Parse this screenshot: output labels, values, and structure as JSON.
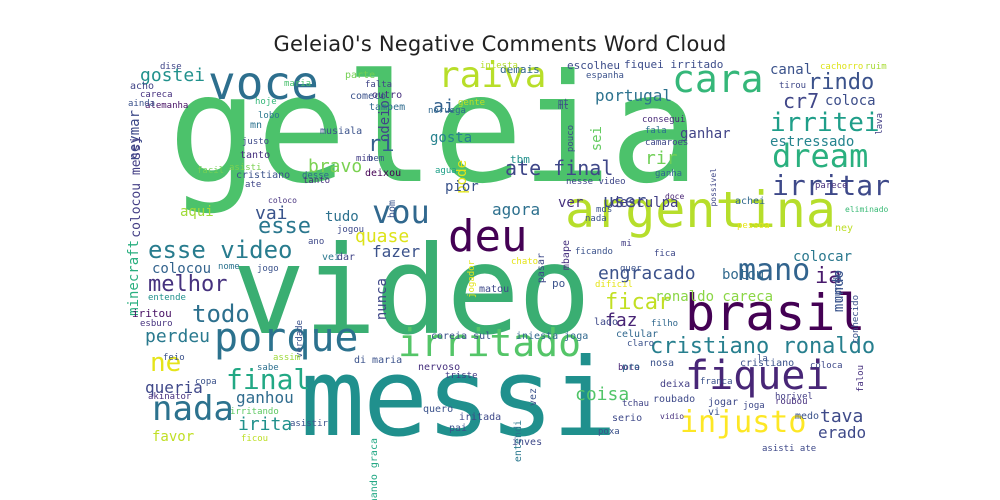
{
  "title": "Geleia0's Negative Comments Word Cloud",
  "words": [
    {
      "text": "geleia",
      "color": "#4cc26b"
    },
    {
      "text": "video",
      "color": "#3aae72"
    },
    {
      "text": "messi",
      "color": "#20908d"
    },
    {
      "text": "argentina",
      "color": "#b6de2b"
    },
    {
      "text": "brasil",
      "color": "#440154"
    },
    {
      "text": "voce",
      "color": "#2d6f8e"
    },
    {
      "text": "raiva",
      "color": "#b8de29"
    },
    {
      "text": "cara",
      "color": "#35b779"
    },
    {
      "text": "dream",
      "color": "#2ab07f"
    },
    {
      "text": "porque",
      "color": "#2c728e"
    },
    {
      "text": "irritado",
      "color": "#54c568"
    },
    {
      "text": "fiquei",
      "color": "#482677"
    },
    {
      "text": "deu",
      "color": "#440154"
    },
    {
      "text": "vou",
      "color": "#31688e"
    },
    {
      "text": "mano",
      "color": "#32648e"
    },
    {
      "text": "nada",
      "color": "#2c728e"
    },
    {
      "text": "irritei",
      "color": "#1f9e89"
    },
    {
      "text": "irritar",
      "color": "#3e4989"
    },
    {
      "text": "rindo",
      "color": "#3b528b"
    },
    {
      "text": "injusto",
      "color": "#fde725"
    },
    {
      "text": "final",
      "color": "#22a884"
    },
    {
      "text": "esse video",
      "color": "#287c8e"
    },
    {
      "text": "todo",
      "color": "#2d708e"
    },
    {
      "text": "cristiano ronaldo",
      "color": "#277f8e"
    },
    {
      "text": "cr7",
      "color": "#404688"
    },
    {
      "text": "melhor",
      "color": "#46327e"
    },
    {
      "text": "ficar",
      "color": "#c2df23"
    },
    {
      "text": "engracado",
      "color": "#3b528b"
    },
    {
      "text": "ne",
      "color": "#e5e419"
    },
    {
      "text": "esse",
      "color": "#2a778e"
    },
    {
      "text": "ate final",
      "color": "#3f4788"
    },
    {
      "text": "gostei",
      "color": "#21918c"
    },
    {
      "text": "ia",
      "color": "#481a6c"
    },
    {
      "text": "odeio",
      "color": "#414487"
    },
    {
      "text": "portugal",
      "color": "#2c728e"
    },
    {
      "text": "bravo",
      "color": "#7ad151"
    },
    {
      "text": "ri",
      "color": "#355f8d"
    },
    {
      "text": "agora",
      "color": "#2d708e"
    },
    {
      "text": "quase",
      "color": "#dde318"
    },
    {
      "text": "colocou",
      "color": "#33638d"
    },
    {
      "text": "fazer",
      "color": "#3b528b"
    },
    {
      "text": "neymar",
      "color": "#3e4a89"
    },
    {
      "text": "tava",
      "color": "#3e4a89"
    },
    {
      "text": "coisa",
      "color": "#52c569"
    },
    {
      "text": "irita",
      "color": "#21918c"
    },
    {
      "text": "ganhou",
      "color": "#2f6c8e"
    },
    {
      "text": "erado",
      "color": "#3e4989"
    },
    {
      "text": "favor",
      "color": "#c0df25"
    },
    {
      "text": "queria",
      "color": "#3f4889"
    },
    {
      "text": "perdeu",
      "color": "#29798e"
    },
    {
      "text": "ronaldo careca",
      "color": "#8bd646"
    },
    {
      "text": "botou",
      "color": "#30698e"
    },
    {
      "text": "colocar",
      "color": "#2a788e"
    },
    {
      "text": "mundo",
      "color": "#3a548c"
    },
    {
      "text": "faz",
      "color": "#482475"
    },
    {
      "text": "rir",
      "color": "#70cf57"
    },
    {
      "text": "ai",
      "color": "#34618d"
    },
    {
      "text": "ganhar",
      "color": "#414487"
    },
    {
      "text": "pode",
      "color": "#e2e418"
    },
    {
      "text": "sei",
      "color": "#63cb5f"
    },
    {
      "text": "user",
      "color": "#3e4c8a"
    },
    {
      "text": "vai",
      "color": "#3a548c"
    },
    {
      "text": "tudo",
      "color": "#2d718e"
    },
    {
      "text": "aqui",
      "color": "#a0da39"
    },
    {
      "text": "canal",
      "color": "#3b528b"
    },
    {
      "text": "coloca",
      "color": "#3d4e8a"
    },
    {
      "text": "estressado",
      "color": "#25848e"
    },
    {
      "text": "gosta",
      "color": "#26828e"
    },
    {
      "text": "pior",
      "color": "#3a538b"
    },
    {
      "text": "ver",
      "color": "#46307e"
    },
    {
      "text": "desculpa",
      "color": "#424086"
    },
    {
      "text": "nunca",
      "color": "#3f4788"
    },
    {
      "text": "minecraft",
      "color": "#29af7f"
    },
    {
      "text": "colocou messi",
      "color": "#433e85"
    },
    {
      "text": "fiquei irritado",
      "color": "#3d4d8a"
    },
    {
      "text": "escolheu",
      "color": "#3d4d8a"
    },
    {
      "text": "demais",
      "color": "#31678e"
    },
    {
      "text": "tbm",
      "color": "#21918c"
    },
    {
      "text": "mundo",
      "color": "#3a548c"
    },
    {
      "text": "iritou",
      "color": "#471063"
    },
    {
      "text": "bom",
      "color": "#3a548c"
    },
    {
      "text": "outro",
      "color": "#46307e"
    },
    {
      "text": "tambem",
      "color": "#2f6b8e"
    },
    {
      "text": "parte",
      "color": "#75d054"
    },
    {
      "text": "comeco",
      "color": "#3b528b"
    },
    {
      "text": "dise",
      "color": "#404688"
    },
    {
      "text": "acho",
      "color": "#414487"
    },
    {
      "text": "careca",
      "color": "#46307e"
    },
    {
      "text": "alemanha",
      "color": "#471164"
    },
    {
      "text": "hoje",
      "color": "#35b779"
    },
    {
      "text": "lobo",
      "color": "#2a788e"
    },
    {
      "text": "mn",
      "color": "#2c728e"
    },
    {
      "text": "musiala",
      "color": "#3b528b"
    },
    {
      "text": "justo",
      "color": "#3e4a89"
    },
    {
      "text": "tanto",
      "color": "#46307e"
    },
    {
      "text": "facil",
      "color": "#73d056"
    },
    {
      "text": "asisti",
      "color": "#7ad151"
    },
    {
      "text": "ate",
      "color": "#404688"
    },
    {
      "text": "bem",
      "color": "#3b528b"
    },
    {
      "text": "mim",
      "color": "#433e85"
    },
    {
      "text": "deixou",
      "color": "#440154"
    },
    {
      "text": "desse",
      "color": "#30698e"
    },
    {
      "text": "agua",
      "color": "#1fa088"
    },
    {
      "text": "nesse video",
      "color": "#3f4788"
    },
    {
      "text": "camaroes",
      "color": "#3f4788"
    },
    {
      "text": "consegui",
      "color": "#482878"
    },
    {
      "text": "fala",
      "color": "#2c728e"
    },
    {
      "text": "ganha",
      "color": "#31688e"
    },
    {
      "text": "mt",
      "color": "#3b528b"
    },
    {
      "text": "noruega",
      "color": "#31688e"
    },
    {
      "text": "gente",
      "color": "#bddf26"
    },
    {
      "text": "maria",
      "color": "#4ac16d"
    },
    {
      "text": "falta",
      "color": "#414487"
    },
    {
      "text": "espanha",
      "color": "#3b528b"
    },
    {
      "text": "iniesta",
      "color": "#b5de2b"
    },
    {
      "text": "tirou",
      "color": "#3f4889"
    },
    {
      "text": "cachorro",
      "color": "#dde318"
    },
    {
      "text": "ruim",
      "color": "#a8db34"
    },
    {
      "text": "lava",
      "color": "#433e85"
    },
    {
      "text": "possivel",
      "color": "#3f4788"
    },
    {
      "text": "doce",
      "color": "#482475"
    },
    {
      "text": "achei",
      "color": "#31688e"
    },
    {
      "text": "mds",
      "color": "#3b528b"
    },
    {
      "text": "nada",
      "color": "#3b528b"
    },
    {
      "text": "pessoa",
      "color": "#e7e419"
    },
    {
      "text": "eliminado",
      "color": "#3aba76"
    },
    {
      "text": "coloco",
      "color": "#46327e"
    },
    {
      "text": "jogou",
      "color": "#3e4989"
    },
    {
      "text": "ano",
      "color": "#3e4989"
    },
    {
      "text": "vei",
      "color": "#2a788e"
    },
    {
      "text": "dar",
      "color": "#414487"
    },
    {
      "text": "nome",
      "color": "#2c728e"
    },
    {
      "text": "jogo",
      "color": "#3b528b"
    },
    {
      "text": "entende",
      "color": "#21918c"
    },
    {
      "text": "esburo",
      "color": "#46327e"
    },
    {
      "text": "verdade",
      "color": "#3b528b"
    },
    {
      "text": "assim",
      "color": "#9dd93b"
    },
    {
      "text": "sabe",
      "color": "#2d708e"
    },
    {
      "text": "di maria",
      "color": "#3b528b"
    },
    {
      "text": "feio",
      "color": "#3b528b"
    },
    {
      "text": "copa",
      "color": "#3b528b"
    },
    {
      "text": "akinator",
      "color": "#46307e"
    },
    {
      "text": "irritando",
      "color": "#5ec962"
    },
    {
      "text": "ficou",
      "color": "#bddf26"
    },
    {
      "text": "asistir",
      "color": "#3b528b"
    },
    {
      "text": "achando graca",
      "color": "#22a884"
    },
    {
      "text": "nervoso",
      "color": "#46307e"
    },
    {
      "text": "pai",
      "color": "#3b528b"
    },
    {
      "text": "iritada",
      "color": "#3e4989"
    },
    {
      "text": "quero",
      "color": "#3b528b"
    },
    {
      "text": "triste",
      "color": "#433e85"
    },
    {
      "text": "entendi",
      "color": "#2a788e"
    },
    {
      "text": "vez",
      "color": "#3b528b"
    },
    {
      "text": "inves",
      "color": "#3e4989"
    },
    {
      "text": "jogador",
      "color": "#e5e419"
    },
    {
      "text": "matou",
      "color": "#3e4989"
    },
    {
      "text": "coreia sul",
      "color": "#3b528b"
    },
    {
      "text": "iniesta joga",
      "color": "#31688e"
    },
    {
      "text": "lado",
      "color": "#3e4989"
    },
    {
      "text": "celular",
      "color": "#31688e"
    },
    {
      "text": "claro",
      "color": "#3b528b"
    },
    {
      "text": "filho",
      "color": "#31688e"
    },
    {
      "text": "chato",
      "color": "#e5e419"
    },
    {
      "text": "pasar",
      "color": "#3e4989"
    },
    {
      "text": "mbape",
      "color": "#46307e"
    },
    {
      "text": "po",
      "color": "#3b528b"
    },
    {
      "text": "mi",
      "color": "#433e85"
    },
    {
      "text": "fica",
      "color": "#3e4989"
    },
    {
      "text": "ficando",
      "color": "#3b528b"
    },
    {
      "text": "dificil",
      "color": "#e5e419"
    },
    {
      "text": "bota",
      "color": "#482475"
    },
    {
      "text": "pro",
      "color": "#31688e"
    },
    {
      "text": "nosa",
      "color": "#3b528b"
    },
    {
      "text": "serio",
      "color": "#3e4989"
    },
    {
      "text": "tchau",
      "color": "#414487"
    },
    {
      "text": "poxa",
      "color": "#3b528b"
    },
    {
      "text": "roubado",
      "color": "#3e4989"
    },
    {
      "text": "deixa",
      "color": "#433e85"
    },
    {
      "text": "franca",
      "color": "#3b528b"
    },
    {
      "text": "jogar",
      "color": "#3e4989"
    },
    {
      "text": "joga",
      "color": "#3e4989"
    },
    {
      "text": "vi",
      "color": "#3b528b"
    },
    {
      "text": "vidio",
      "color": "#46307e"
    },
    {
      "text": "horivel",
      "color": "#433e85"
    },
    {
      "text": "roubou",
      "color": "#46307e"
    },
    {
      "text": "medo",
      "color": "#3b528b"
    },
    {
      "text": "asisti ate",
      "color": "#3e4989"
    },
    {
      "text": "cristiano",
      "color": "#3b528b"
    },
    {
      "text": "coloca",
      "color": "#3e4989"
    },
    {
      "text": "falou",
      "color": "#46307e"
    },
    {
      "text": "conhecido",
      "color": "#3b528b"
    },
    {
      "text": "mt",
      "color": "#3e4989"
    },
    {
      "text": "quer",
      "color": "#3b528b"
    },
    {
      "text": "pouco",
      "color": "#3e4989"
    },
    {
      "text": "ainda",
      "color": "#3b528b"
    },
    {
      "text": "parece",
      "color": "#46307e"
    },
    {
      "text": "ney",
      "color": "#bddf26"
    },
    {
      "text": "la",
      "color": "#3b528b"
    },
    {
      "text": "cristiano",
      "color": "#3b528b"
    },
    {
      "text": "tanto",
      "color": "#46307e"
    }
  ]
}
